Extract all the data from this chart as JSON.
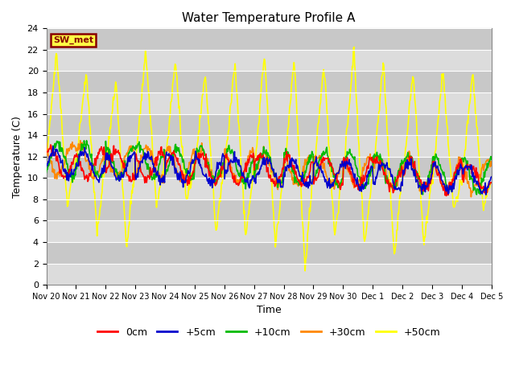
{
  "title": "Water Temperature Profile A",
  "xlabel": "Time",
  "ylabel": "Temperature (C)",
  "ylim": [
    0,
    24
  ],
  "date_labels": [
    "Nov 20",
    "Nov 21",
    "Nov 22",
    "Nov 23",
    "Nov 24",
    "Nov 25",
    "Nov 26",
    "Nov 27",
    "Nov 28",
    "Nov 29",
    "Nov 30",
    "Dec 1",
    "Dec 2",
    "Dec 3",
    "Dec 4",
    "Dec 5"
  ],
  "colors": {
    "0cm": "#ff0000",
    "+5cm": "#0000cc",
    "+10cm": "#00bb00",
    "+30cm": "#ff8800",
    "+50cm": "#ffff00"
  },
  "sw_met_text": "SW_met",
  "sw_met_bg": "#ffff44",
  "sw_met_border": "#880000",
  "bg_color_light": "#dcdcdc",
  "bg_color_dark": "#c8c8c8",
  "linewidth": 1.2,
  "title_fontsize": 11
}
